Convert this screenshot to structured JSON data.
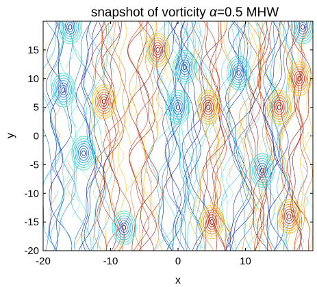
{
  "chart_data": {
    "type": "contour",
    "title_parts": [
      "snapshot of vorticity ",
      "α",
      "=0.5  MHW"
    ],
    "xlabel": "x",
    "ylabel": "y",
    "xlim": [
      -20,
      20
    ],
    "ylim": [
      -20,
      20
    ],
    "xticks": [
      -20,
      -10,
      0,
      10
    ],
    "yticks": [
      -20,
      -15,
      -10,
      -5,
      0,
      5,
      10,
      15
    ],
    "colormap": [
      "#0a1f9e",
      "#1f6fd8",
      "#2fb7e8",
      "#3fe0d0",
      "#7ee08a",
      "#d6e23a",
      "#f3c01e",
      "#f07a12",
      "#d42a10",
      "#8f1208"
    ],
    "vortices": [
      {
        "x": 4.5,
        "y": 5,
        "sign": 1
      },
      {
        "x": 15,
        "y": 5,
        "sign": 1
      },
      {
        "x": -3,
        "y": 15,
        "sign": 1
      },
      {
        "x": -11,
        "y": 6,
        "sign": 1
      },
      {
        "x": 18,
        "y": 10,
        "sign": 1
      },
      {
        "x": 16.5,
        "y": -14,
        "sign": 1
      },
      {
        "x": 5,
        "y": -15,
        "sign": 1
      },
      {
        "x": -16,
        "y": 19,
        "sign": -1
      },
      {
        "x": 0,
        "y": 5,
        "sign": -1
      },
      {
        "x": -14,
        "y": -3,
        "sign": -1
      },
      {
        "x": 1,
        "y": 12,
        "sign": -1
      },
      {
        "x": -8,
        "y": -16,
        "sign": -1
      },
      {
        "x": 12.5,
        "y": -6,
        "sign": -1
      },
      {
        "x": 18.5,
        "y": 19,
        "sign": -1
      },
      {
        "x": -17,
        "y": 8,
        "sign": -1
      },
      {
        "x": 9,
        "y": 11,
        "sign": -1
      }
    ],
    "bands": [
      {
        "x": -18,
        "sign": -1
      },
      {
        "x": -13,
        "sign": -1
      },
      {
        "x": -10,
        "sign": 1
      },
      {
        "x": -5,
        "sign": 1
      },
      {
        "x": -1,
        "sign": -1
      },
      {
        "x": 2,
        "sign": -1
      },
      {
        "x": 5.5,
        "sign": 1
      },
      {
        "x": 9,
        "sign": -1
      },
      {
        "x": 12,
        "sign": 1
      },
      {
        "x": 14.5,
        "sign": -1
      },
      {
        "x": 17.5,
        "sign": 1
      }
    ]
  }
}
